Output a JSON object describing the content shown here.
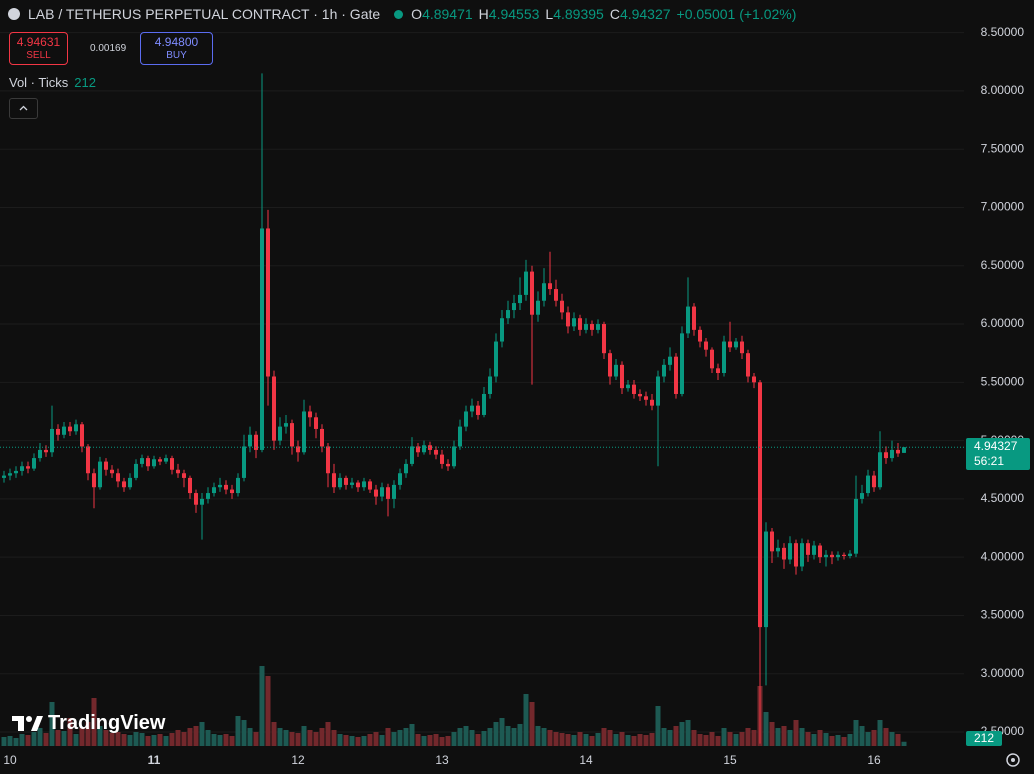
{
  "header": {
    "title": "LAB / TETHERUS PERPETUAL CONTRACT · 1h · Gate",
    "open_label": "O",
    "high_label": "H",
    "low_label": "L",
    "close_label": "C",
    "change": "+0.05001 (+1.02%)",
    "sell_price": "4.94631",
    "sell_label": "SELL",
    "spread": "0.00169",
    "buy_price": "4.94800",
    "buy_label": "BUY",
    "volume_label": "Vol · Ticks",
    "countdown": "56:21",
    "logo": "TradingView"
  },
  "chart_data": {
    "type": "candlestick",
    "categories": [
      null,
      "10",
      null,
      null,
      null,
      null,
      null,
      null,
      null,
      null,
      null,
      null,
      null,
      null,
      null,
      null,
      null,
      null,
      null,
      null,
      null,
      null,
      null,
      null,
      null,
      "11",
      null,
      null,
      null,
      null,
      null,
      null,
      null,
      null,
      null,
      null,
      null,
      null,
      null,
      null,
      null,
      null,
      null,
      null,
      null,
      null,
      null,
      null,
      null,
      "12",
      null,
      null,
      null,
      null,
      null,
      null,
      null,
      null,
      null,
      null,
      null,
      null,
      null,
      null,
      null,
      null,
      null,
      null,
      null,
      null,
      null,
      null,
      null,
      "13",
      null,
      null,
      null,
      null,
      null,
      null,
      null,
      null,
      null,
      null,
      null,
      null,
      null,
      null,
      null,
      null,
      null,
      null,
      null,
      null,
      null,
      null,
      null,
      "14",
      null,
      null,
      null,
      null,
      null,
      null,
      null,
      null,
      null,
      null,
      null,
      null,
      null,
      null,
      null,
      null,
      null,
      null,
      null,
      null,
      null,
      null,
      null,
      "15",
      null,
      null,
      null,
      null,
      null,
      null,
      null,
      null,
      null,
      null,
      null,
      null,
      null,
      null,
      null,
      null,
      null,
      null,
      null,
      null,
      null,
      null,
      null,
      "16",
      null,
      null,
      null,
      null,
      null
    ],
    "open": [
      4.68,
      4.7,
      4.72,
      4.74,
      4.78,
      4.76,
      4.85,
      4.92,
      4.9,
      5.1,
      5.05,
      5.12,
      5.08,
      5.14,
      4.95,
      4.72,
      4.6,
      4.82,
      4.75,
      4.72,
      4.65,
      4.6,
      4.68,
      4.8,
      4.85,
      4.78,
      4.84,
      4.82,
      4.85,
      4.75,
      4.72,
      4.68,
      4.55,
      4.45,
      4.5,
      4.55,
      4.6,
      4.62,
      4.58,
      4.55,
      4.68,
      4.95,
      5.05,
      4.92,
      6.82,
      5.55,
      5.0,
      5.12,
      5.15,
      4.95,
      4.9,
      5.25,
      5.2,
      5.1,
      4.95,
      4.72,
      4.6,
      4.68,
      4.62,
      4.64,
      4.6,
      4.65,
      4.58,
      4.52,
      4.6,
      4.5,
      4.62,
      4.72,
      4.8,
      4.95,
      4.9,
      4.96,
      4.92,
      4.88,
      4.8,
      4.78,
      4.95,
      5.12,
      5.25,
      5.3,
      5.22,
      5.4,
      5.55,
      5.85,
      6.05,
      6.12,
      6.18,
      6.25,
      6.45,
      6.08,
      6.2,
      6.35,
      6.3,
      6.2,
      6.1,
      5.98,
      6.05,
      5.95,
      6.0,
      5.95,
      6.0,
      5.75,
      5.55,
      5.65,
      5.45,
      5.48,
      5.4,
      5.38,
      5.35,
      5.3,
      5.55,
      5.65,
      5.72,
      5.4,
      5.92,
      6.15,
      5.95,
      5.85,
      5.78,
      5.62,
      5.58,
      5.85,
      5.8,
      5.85,
      5.75,
      5.55,
      5.5,
      3.4,
      4.22,
      4.05,
      4.08,
      3.98,
      4.12,
      3.92,
      4.12,
      4.02,
      4.1,
      4.0,
      4.02,
      4.0,
      4.02,
      4.01,
      4.03,
      4.5,
      4.55,
      4.7,
      4.6,
      4.9,
      4.85,
      4.92,
      4.89471
    ],
    "high": [
      4.74,
      4.76,
      4.78,
      4.82,
      4.82,
      4.89,
      4.98,
      4.96,
      5.3,
      5.14,
      5.16,
      5.16,
      5.18,
      5.16,
      4.97,
      4.76,
      4.86,
      4.85,
      4.79,
      4.76,
      4.68,
      4.72,
      4.84,
      4.88,
      4.87,
      4.87,
      4.86,
      4.88,
      4.87,
      4.8,
      4.75,
      4.7,
      4.58,
      4.55,
      4.6,
      4.64,
      4.68,
      4.66,
      4.62,
      4.72,
      5.05,
      5.12,
      5.08,
      8.15,
      6.98,
      5.6,
      5.2,
      5.22,
      5.18,
      5.0,
      5.35,
      5.3,
      5.24,
      5.14,
      4.98,
      4.8,
      4.72,
      4.7,
      4.68,
      4.66,
      4.68,
      4.67,
      4.62,
      4.64,
      4.63,
      4.66,
      4.76,
      4.84,
      5.03,
      4.98,
      5.0,
      4.99,
      4.95,
      4.92,
      4.84,
      5.0,
      5.18,
      5.3,
      5.36,
      5.34,
      5.46,
      5.62,
      5.92,
      6.12,
      6.2,
      6.25,
      6.4,
      6.55,
      6.5,
      6.28,
      6.48,
      6.62,
      6.38,
      6.26,
      6.15,
      6.1,
      6.08,
      6.05,
      6.03,
      6.04,
      6.02,
      5.78,
      5.7,
      5.68,
      5.52,
      5.52,
      5.44,
      5.42,
      5.4,
      5.6,
      5.7,
      5.8,
      5.75,
      5.98,
      6.4,
      6.18,
      5.98,
      5.88,
      5.8,
      5.66,
      5.9,
      6.02,
      5.88,
      5.9,
      5.78,
      5.58,
      5.52,
      4.3,
      4.25,
      4.15,
      4.12,
      4.18,
      4.15,
      4.16,
      4.15,
      4.14,
      4.12,
      4.06,
      4.05,
      4.05,
      4.04,
      4.06,
      4.7,
      4.62,
      4.75,
      4.74,
      5.08,
      4.95,
      5.0,
      4.98,
      4.94553
    ],
    "low": [
      4.64,
      4.66,
      4.68,
      4.7,
      4.72,
      4.74,
      4.82,
      4.86,
      4.86,
      5.0,
      5.02,
      5.04,
      5.05,
      4.9,
      4.66,
      4.42,
      4.58,
      4.7,
      4.68,
      4.6,
      4.56,
      4.58,
      4.66,
      4.77,
      4.74,
      4.76,
      4.79,
      4.8,
      4.71,
      4.68,
      4.6,
      4.5,
      4.38,
      4.15,
      4.46,
      4.52,
      4.56,
      4.54,
      4.5,
      4.52,
      4.65,
      4.9,
      4.85,
      4.9,
      5.3,
      4.92,
      4.96,
      5.06,
      4.88,
      4.82,
      4.88,
      5.12,
      5.02,
      4.9,
      4.6,
      4.55,
      4.58,
      4.58,
      4.59,
      4.56,
      4.57,
      4.55,
      4.45,
      4.48,
      4.35,
      4.42,
      4.58,
      4.68,
      4.78,
      4.86,
      4.88,
      4.88,
      4.84,
      4.76,
      4.74,
      4.76,
      4.92,
      5.08,
      5.2,
      5.18,
      5.2,
      5.36,
      5.5,
      5.8,
      6.0,
      6.05,
      6.12,
      6.2,
      5.48,
      6.02,
      6.15,
      6.25,
      6.15,
      6.04,
      5.92,
      5.94,
      5.9,
      5.92,
      5.9,
      5.92,
      5.7,
      5.48,
      5.52,
      5.4,
      5.42,
      5.36,
      5.34,
      5.3,
      5.26,
      4.78,
      5.5,
      5.6,
      5.36,
      5.38,
      5.88,
      5.9,
      5.8,
      5.72,
      5.58,
      5.52,
      5.55,
      5.76,
      5.78,
      5.7,
      5.5,
      5.45,
      2.4,
      2.9,
      3.95,
      4.0,
      3.9,
      3.94,
      3.85,
      3.88,
      3.96,
      3.98,
      3.95,
      3.92,
      3.94,
      3.97,
      3.98,
      3.99,
      4.0,
      4.46,
      4.52,
      4.56,
      4.58,
      4.8,
      4.82,
      4.86,
      4.89395
    ],
    "close": [
      4.7,
      4.72,
      4.74,
      4.78,
      4.76,
      4.85,
      4.92,
      4.9,
      5.1,
      5.05,
      5.12,
      5.08,
      5.14,
      4.95,
      4.72,
      4.6,
      4.82,
      4.75,
      4.72,
      4.65,
      4.6,
      4.68,
      4.8,
      4.85,
      4.78,
      4.84,
      4.82,
      4.85,
      4.75,
      4.72,
      4.68,
      4.55,
      4.45,
      4.5,
      4.55,
      4.6,
      4.62,
      4.58,
      4.55,
      4.68,
      4.95,
      5.05,
      4.92,
      6.82,
      5.55,
      5.0,
      5.12,
      5.15,
      4.95,
      4.9,
      5.25,
      5.2,
      5.1,
      4.95,
      4.72,
      4.6,
      4.68,
      4.62,
      4.64,
      4.6,
      4.65,
      4.58,
      4.52,
      4.6,
      4.5,
      4.62,
      4.72,
      4.8,
      4.95,
      4.9,
      4.96,
      4.92,
      4.88,
      4.8,
      4.78,
      4.95,
      5.12,
      5.25,
      5.3,
      5.22,
      5.4,
      5.55,
      5.85,
      6.05,
      6.12,
      6.18,
      6.25,
      6.45,
      6.08,
      6.2,
      6.35,
      6.3,
      6.2,
      6.1,
      5.98,
      6.05,
      5.95,
      6.0,
      5.95,
      6.0,
      5.75,
      5.55,
      5.65,
      5.45,
      5.48,
      5.4,
      5.38,
      5.35,
      5.3,
      5.55,
      5.65,
      5.72,
      5.4,
      5.92,
      6.15,
      5.95,
      5.85,
      5.78,
      5.62,
      5.58,
      5.85,
      5.8,
      5.85,
      5.75,
      5.55,
      5.5,
      3.4,
      4.22,
      4.05,
      4.08,
      3.98,
      4.12,
      3.92,
      4.12,
      4.02,
      4.1,
      4.0,
      4.02,
      4.0,
      4.02,
      4.01,
      4.03,
      4.5,
      4.55,
      4.7,
      4.6,
      4.9,
      4.85,
      4.92,
      4.89,
      4.94327
    ],
    "volume": [
      450,
      500,
      400,
      600,
      550,
      700,
      900,
      650,
      2200,
      800,
      750,
      1400,
      600,
      900,
      1200,
      2400,
      1000,
      800,
      650,
      700,
      600,
      550,
      700,
      650,
      500,
      550,
      600,
      500,
      650,
      800,
      700,
      900,
      1000,
      1200,
      800,
      600,
      550,
      600,
      500,
      1500,
      1300,
      900,
      700,
      4000,
      3500,
      1200,
      900,
      800,
      700,
      650,
      1000,
      800,
      700,
      900,
      1200,
      800,
      600,
      550,
      500,
      450,
      500,
      600,
      700,
      550,
      900,
      700,
      800,
      900,
      1100,
      600,
      500,
      550,
      600,
      450,
      500,
      700,
      900,
      1000,
      800,
      600,
      750,
      900,
      1200,
      1400,
      1000,
      900,
      1100,
      2600,
      2200,
      1000,
      900,
      800,
      700,
      650,
      600,
      550,
      700,
      600,
      500,
      650,
      900,
      800,
      600,
      700,
      550,
      500,
      600,
      550,
      650,
      2000,
      900,
      800,
      1000,
      1200,
      1300,
      800,
      600,
      550,
      700,
      500,
      900,
      700,
      600,
      700,
      900,
      800,
      3000,
      1700,
      1200,
      900,
      1000,
      800,
      1300,
      900,
      700,
      600,
      800,
      650,
      500,
      550,
      450,
      600,
      1300,
      1000,
      700,
      800,
      1300,
      900,
      700,
      600,
      212
    ],
    "ylim": [
      2.38,
      8.78
    ],
    "yticks": [
      {
        "value": 2.5,
        "label": "2.50000"
      },
      {
        "value": 3,
        "label": "3.00000"
      },
      {
        "value": 3.5,
        "label": "3.50000"
      },
      {
        "value": 4,
        "label": "4.00000"
      },
      {
        "value": 4.5,
        "label": "4.50000"
      },
      {
        "value": 5,
        "label": "5.00000"
      },
      {
        "value": 5.5,
        "label": "5.50000"
      },
      {
        "value": 6,
        "label": "6.00000"
      },
      {
        "value": 6.5,
        "label": "6.50000"
      },
      {
        "value": 7,
        "label": "7.00000"
      },
      {
        "value": 7.5,
        "label": "7.50000"
      },
      {
        "value": 8,
        "label": "8.00000"
      },
      {
        "value": 8.5,
        "label": "8.50000"
      }
    ],
    "grid": true,
    "up_color": "#089981",
    "down_color": "#f23645",
    "up_volume_color": "#1d5a53",
    "down_volume_color": "#73282c"
  }
}
